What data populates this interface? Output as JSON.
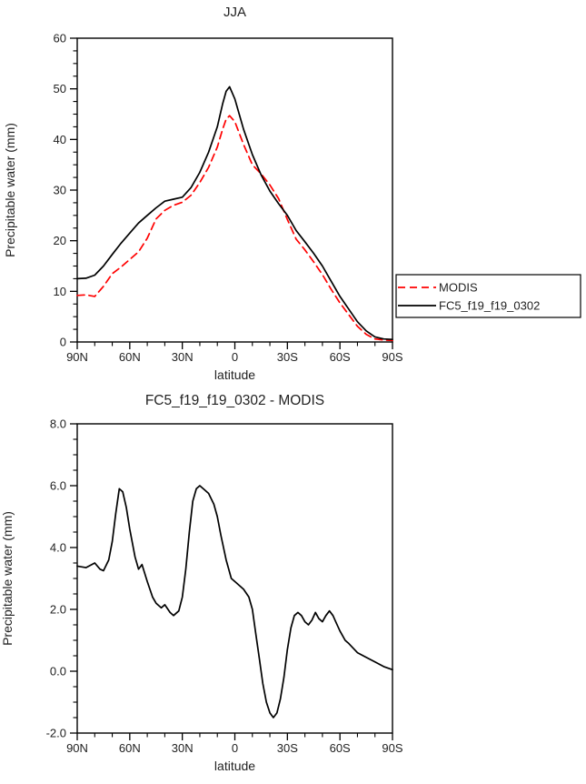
{
  "figure": {
    "background": "#ffffff",
    "text_color": "#222222",
    "axis_color": "#000000"
  },
  "chart_data": [
    {
      "type": "line",
      "title": "JJA",
      "xlabel": "latitude",
      "ylabel": "Precipitable water (mm)",
      "xlim": [
        90,
        -90
      ],
      "ylim": [
        0,
        60
      ],
      "minor_x": 10,
      "minor_y": 2.5,
      "grid": false,
      "xticks": [
        {
          "v": 90,
          "t": "90N"
        },
        {
          "v": 60,
          "t": "60N"
        },
        {
          "v": 30,
          "t": "30N"
        },
        {
          "v": 0,
          "t": "0"
        },
        {
          "v": -30,
          "t": "30S"
        },
        {
          "v": -60,
          "t": "60S"
        },
        {
          "v": -90,
          "t": "90S"
        }
      ],
      "yticks": [
        {
          "v": 0,
          "t": "0"
        },
        {
          "v": 10,
          "t": "10"
        },
        {
          "v": 20,
          "t": "20"
        },
        {
          "v": 30,
          "t": "30"
        },
        {
          "v": 40,
          "t": "40"
        },
        {
          "v": 50,
          "t": "50"
        },
        {
          "v": 60,
          "t": "60"
        }
      ],
      "legend": {
        "position": "right-outside",
        "entries": [
          {
            "label": "MODIS",
            "color": "#ff0000",
            "dash": [
              8,
              5
            ]
          },
          {
            "label": "FC5_f19_f19_0302",
            "color": "#000000",
            "dash": null
          }
        ]
      },
      "series": [
        {
          "name": "MODIS",
          "color": "#ff0000",
          "dash": [
            8,
            5
          ],
          "x": [
            90,
            85,
            80,
            75,
            70,
            65,
            60,
            55,
            50,
            45,
            40,
            35,
            30,
            25,
            20,
            15,
            10,
            7,
            5,
            3,
            0,
            -5,
            -10,
            -15,
            -20,
            -25,
            -30,
            -35,
            -40,
            -45,
            -50,
            -55,
            -60,
            -65,
            -70,
            -75,
            -80,
            -85,
            -90
          ],
          "y": [
            9.2,
            9.3,
            9.0,
            11.0,
            13.5,
            14.8,
            16.3,
            17.8,
            20.5,
            24.3,
            26.0,
            27.0,
            27.6,
            29.0,
            31.5,
            34.5,
            38.5,
            42.0,
            44.0,
            44.7,
            43.5,
            39.0,
            35.0,
            33.2,
            31.0,
            28.3,
            24.2,
            20.3,
            18.2,
            15.8,
            13.3,
            10.4,
            7.7,
            5.4,
            3.1,
            1.5,
            0.6,
            0.4,
            0.3
          ]
        },
        {
          "name": "FC5_f19_f19_0302",
          "color": "#000000",
          "dash": null,
          "x": [
            90,
            85,
            80,
            75,
            70,
            65,
            60,
            55,
            50,
            45,
            40,
            35,
            30,
            25,
            20,
            15,
            10,
            7,
            5,
            3,
            0,
            -5,
            -10,
            -15,
            -20,
            -25,
            -30,
            -35,
            -40,
            -45,
            -50,
            -55,
            -60,
            -65,
            -70,
            -75,
            -80,
            -85,
            -90
          ],
          "y": [
            12.5,
            12.6,
            13.2,
            15.0,
            17.3,
            19.5,
            21.5,
            23.5,
            25.0,
            26.5,
            27.8,
            28.2,
            28.6,
            30.5,
            33.5,
            37.5,
            42.5,
            47.0,
            49.5,
            50.4,
            48.0,
            42.0,
            37.0,
            33.0,
            29.8,
            27.3,
            25.0,
            22.0,
            19.8,
            17.5,
            15.0,
            12.0,
            9.0,
            6.5,
            4.0,
            2.2,
            1.0,
            0.6,
            0.5
          ]
        }
      ]
    },
    {
      "type": "line",
      "title": "FC5_f19_f19_0302 - MODIS",
      "xlabel": "latitude",
      "ylabel": "Precipitable water (mm)",
      "xlim": [
        90,
        -90
      ],
      "ylim": [
        -2,
        8
      ],
      "minor_x": 10,
      "minor_y": 0.5,
      "grid": false,
      "xticks": [
        {
          "v": 90,
          "t": "90N"
        },
        {
          "v": 60,
          "t": "60N"
        },
        {
          "v": 30,
          "t": "30N"
        },
        {
          "v": 0,
          "t": "0"
        },
        {
          "v": -30,
          "t": "30S"
        },
        {
          "v": -60,
          "t": "60S"
        },
        {
          "v": -90,
          "t": "90S"
        }
      ],
      "yticks": [
        {
          "v": -2,
          "t": "-2.0"
        },
        {
          "v": 0,
          "t": "0.0"
        },
        {
          "v": 2,
          "t": "2.0"
        },
        {
          "v": 4,
          "t": "4.0"
        },
        {
          "v": 6,
          "t": "6.0"
        },
        {
          "v": 8,
          "t": "8.0"
        }
      ],
      "legend": null,
      "series": [
        {
          "name": "FC5_minus_MODIS",
          "color": "#000000",
          "dash": null,
          "x": [
            90,
            85,
            80,
            77,
            75,
            72,
            70,
            68,
            66,
            64,
            62,
            60,
            57,
            55,
            53,
            50,
            47,
            45,
            42,
            40,
            37,
            35,
            32,
            30,
            28,
            26,
            24,
            22,
            20,
            18,
            15,
            12,
            10,
            8,
            5,
            2,
            0,
            -3,
            -5,
            -8,
            -10,
            -12,
            -14,
            -16,
            -18,
            -20,
            -22,
            -24,
            -26,
            -28,
            -30,
            -32,
            -34,
            -36,
            -38,
            -40,
            -42,
            -44,
            -46,
            -48,
            -50,
            -52,
            -54,
            -56,
            -58,
            -60,
            -63,
            -65,
            -70,
            -75,
            -80,
            -85,
            -90
          ],
          "y": [
            3.4,
            3.35,
            3.5,
            3.3,
            3.25,
            3.6,
            4.2,
            5.1,
            5.9,
            5.8,
            5.3,
            4.6,
            3.7,
            3.3,
            3.45,
            2.9,
            2.4,
            2.2,
            2.05,
            2.15,
            1.9,
            1.8,
            1.95,
            2.4,
            3.3,
            4.5,
            5.5,
            5.9,
            6.0,
            5.9,
            5.75,
            5.4,
            5.0,
            4.4,
            3.6,
            3.0,
            2.9,
            2.75,
            2.65,
            2.4,
            2.0,
            1.2,
            0.4,
            -0.4,
            -1.0,
            -1.35,
            -1.5,
            -1.35,
            -0.9,
            -0.2,
            0.7,
            1.4,
            1.8,
            1.9,
            1.8,
            1.6,
            1.5,
            1.65,
            1.9,
            1.7,
            1.6,
            1.8,
            1.95,
            1.8,
            1.55,
            1.3,
            1.0,
            0.9,
            0.6,
            0.45,
            0.3,
            0.15,
            0.05
          ]
        }
      ]
    }
  ]
}
